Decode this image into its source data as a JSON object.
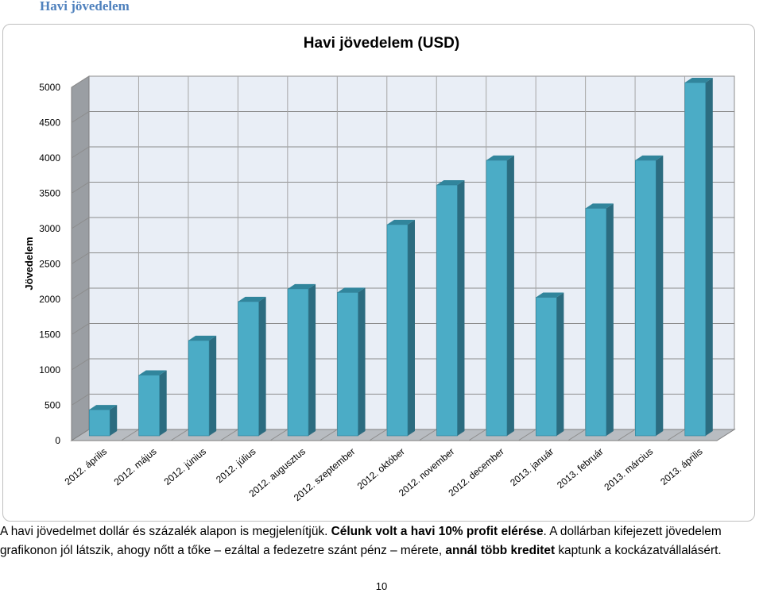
{
  "section": {
    "title": "Havi jövedelem"
  },
  "chart_data": {
    "type": "bar",
    "title": "Havi jövedelem (USD)",
    "xlabel": "",
    "ylabel": "Jövedelem",
    "ylim": [
      0,
      5000
    ],
    "yticks": [
      0,
      500,
      1000,
      1500,
      2000,
      2500,
      3000,
      3500,
      4000,
      4500,
      5000
    ],
    "grid": true,
    "legend": "none",
    "categories": [
      "2012. április",
      "2012. május",
      "2012. június",
      "2012. július",
      "2012. augusztus",
      "2012. szeptember",
      "2012. október",
      "2012. november",
      "2012. december",
      "2013. január",
      "2013. február",
      "2013. március",
      "2013. április"
    ],
    "values": [
      370,
      860,
      1350,
      1900,
      2080,
      2030,
      2990,
      3550,
      3900,
      1960,
      3220,
      3900,
      5000
    ],
    "colors": {
      "bar_front": "#4bacc6",
      "bar_side": "#2c6c80",
      "bar_top": "#31859c"
    }
  },
  "caption": {
    "part1": "A havi jövedelmet dollár és százalék alapon is megjelenítjük. ",
    "bold1": "Célunk volt a havi 10% profit elérése",
    "part2": ". A dollárban kifejezett jövedelem grafikonon jól látszik, ahogy nőtt a tőke – ezáltal a fedezetre szánt pénz – mérete, ",
    "bold2": "annál több kreditet",
    "part3": " kaptunk a kockázatvállalásért."
  },
  "page": {
    "number": "10"
  }
}
